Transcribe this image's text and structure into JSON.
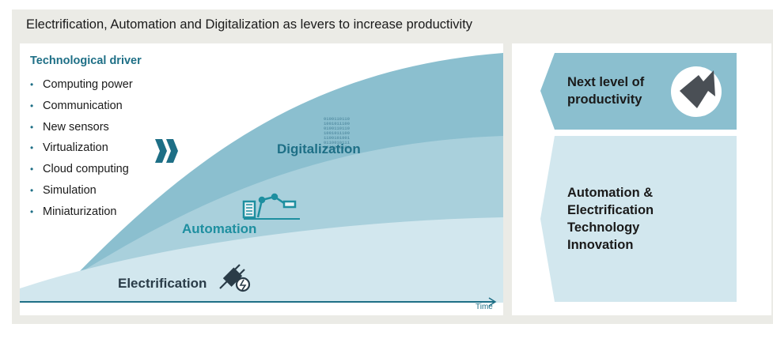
{
  "title": "Electrification, Automation and Digitalization as levers to increase productivity",
  "left": {
    "driver_title": "Technological driver",
    "drivers": [
      "Computing power",
      "Communication",
      "New sensors",
      "Virtualization",
      "Cloud computing",
      "Simulation",
      "Miniaturization"
    ],
    "labels": {
      "digitalization": "Digitalization",
      "automation": "Automation",
      "electrification": "Electrification"
    },
    "time_label": "Time",
    "binary_text": [
      "0100110110",
      "1001011100",
      "0100110110",
      "1001011100",
      "1100101001",
      "0110010111",
      "0011100101"
    ]
  },
  "right": {
    "top_text_1": "Next level of",
    "top_text_2": "productivity",
    "bottom_lines": [
      "Automation &",
      "Electrification",
      "Technology",
      "Innovation"
    ]
  },
  "colors": {
    "digitalization_band": "#8bbfcf",
    "automation_band": "#a9d0dc",
    "electrification_band": "#d2e7ee",
    "accent": "#1e6f86"
  }
}
